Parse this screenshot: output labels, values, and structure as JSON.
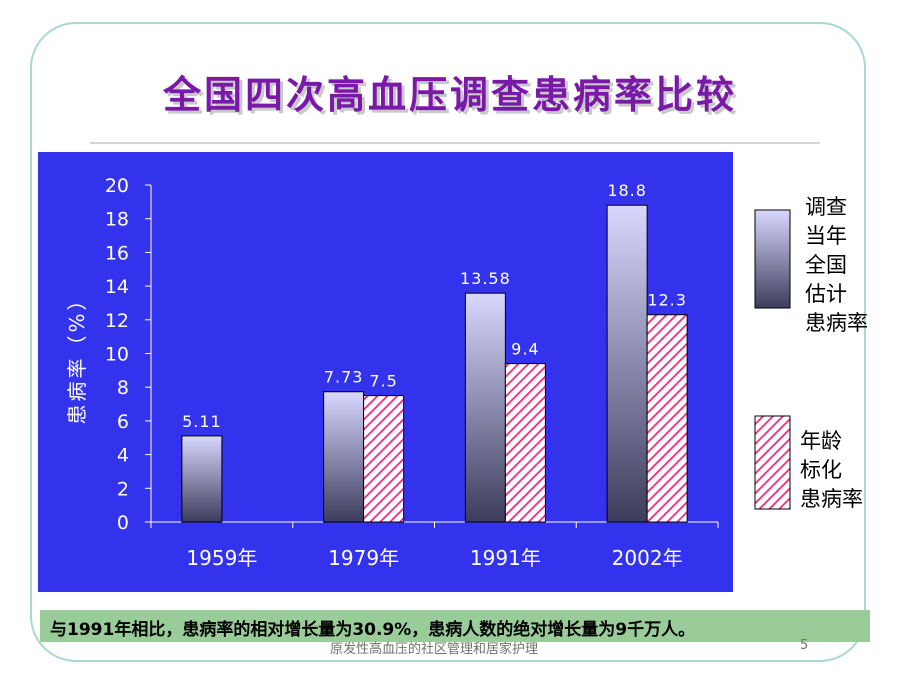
{
  "slide": {
    "title": "全国四次高血压调查患病率比较",
    "note": "与1991年相比，患病率的相对增长量为30.9%，患病人数的绝对增长量为9千万人。",
    "footer": "原发性高血压的社区管理和居家护理",
    "page_number": "5"
  },
  "colors": {
    "panel": "#3333ee",
    "axis_text": "#ffffff",
    "series1_top": "#d8d8ff",
    "series1_bottom": "#3c3c5c",
    "series2_stripe": "#ee2c7a",
    "note_bg": "#99cc99",
    "title": "#7a18a8"
  },
  "chart_data": {
    "type": "bar",
    "categories": [
      "1959年",
      "1979年",
      "1991年",
      "2002年"
    ],
    "series": [
      {
        "name": "调查当年全国估计患病率",
        "values": [
          5.11,
          7.73,
          13.58,
          18.8
        ],
        "labels": [
          "5.11",
          "7.73",
          "13.58",
          "18.8"
        ]
      },
      {
        "name": "年龄标化患病率",
        "values": [
          null,
          7.5,
          9.4,
          12.3
        ],
        "labels": [
          "",
          "7.5",
          "9.4",
          "12.3"
        ]
      }
    ],
    "yticks": [
      "0",
      "2",
      "4",
      "6",
      "8",
      "10",
      "12",
      "14",
      "16",
      "18",
      "20"
    ],
    "ylabel": "患病率（%）",
    "ylim": [
      0,
      20
    ],
    "legend_labels": [
      "调查\n当年\n全国\n估计\n患病率",
      "年龄\n标化\n患病率"
    ],
    "legend": "right"
  }
}
